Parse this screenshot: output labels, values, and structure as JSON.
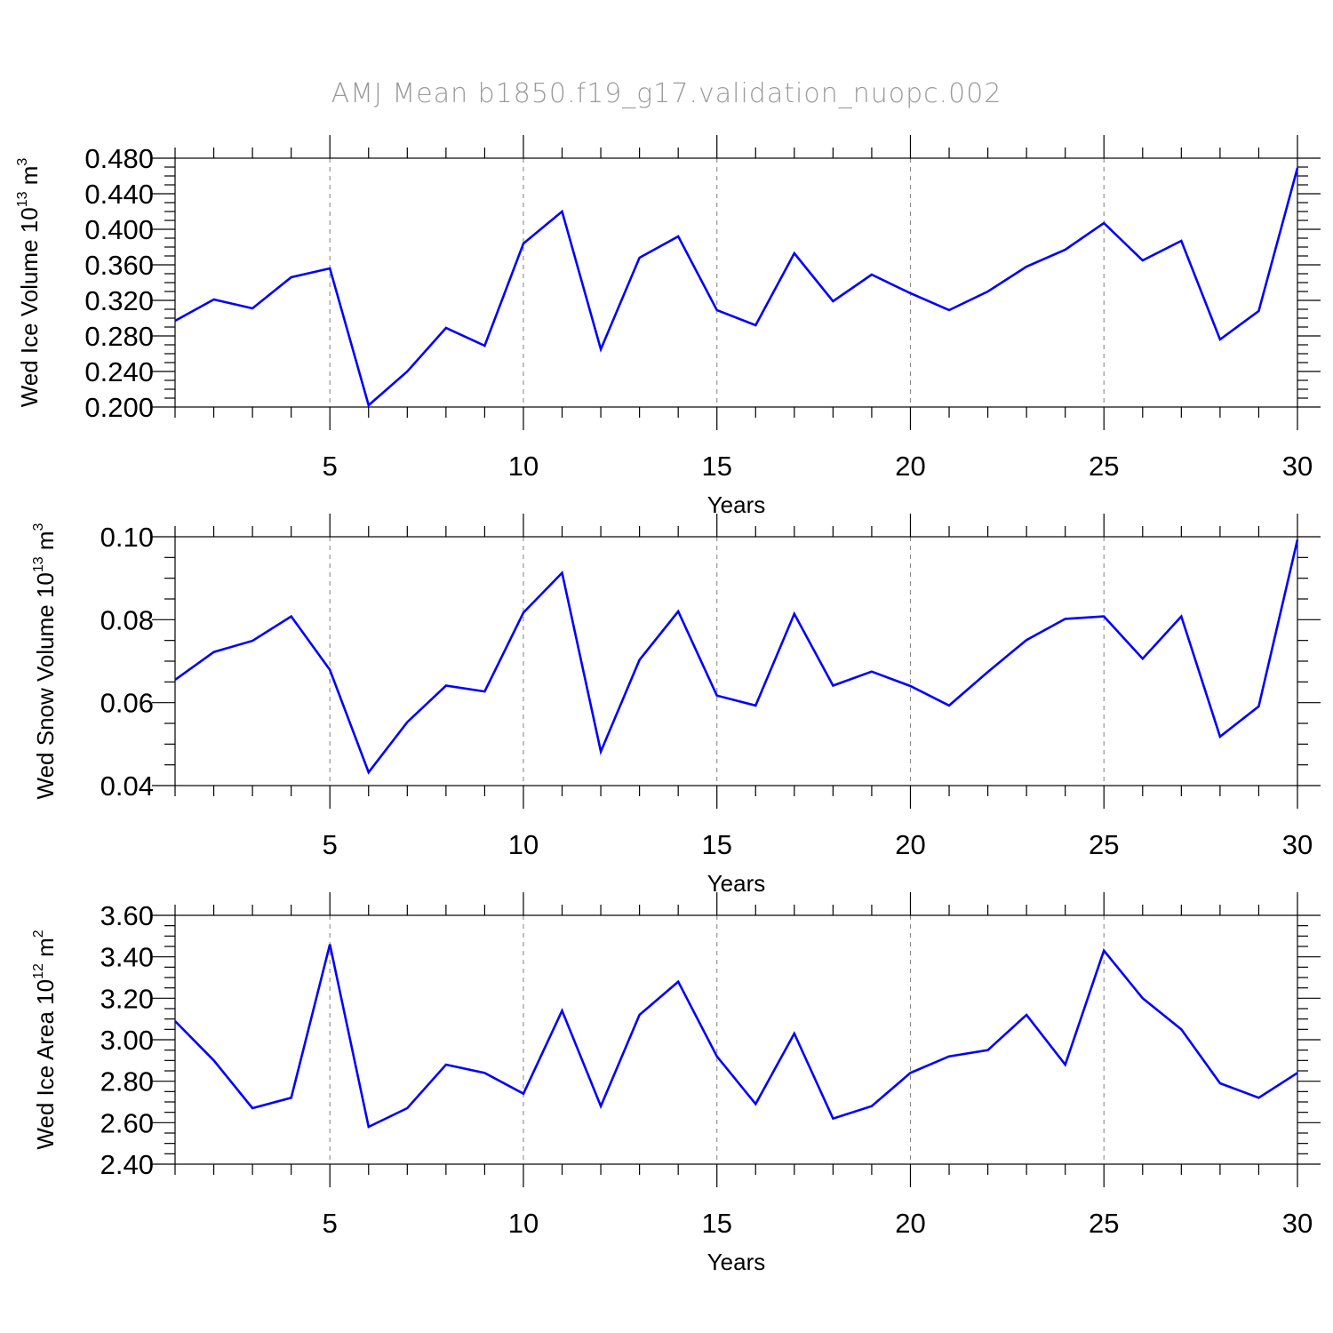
{
  "title": "AMJ Mean b1850.f19_g17.validation_nuopc.002",
  "colors": {
    "series": "#0000ff",
    "grid": "#8a8a8a",
    "title": "#9a9a9a"
  },
  "chart_data": [
    {
      "type": "line",
      "xlabel": "Years",
      "ylabel": {
        "main": "Wed Ice Volume 10",
        "sup1": "13",
        "unit": " m",
        "sup2": "3"
      },
      "xlim": [
        1,
        30
      ],
      "ylim": [
        0.2,
        0.48
      ],
      "xticks": [
        5,
        10,
        15,
        20,
        25,
        30
      ],
      "xtick_labels": [
        "5",
        "10",
        "15",
        "20",
        "25",
        "30"
      ],
      "yticks": [
        0.2,
        0.24,
        0.28,
        0.32,
        0.36,
        0.4,
        0.44,
        0.48
      ],
      "ytick_labels": [
        "0.200",
        "0.240",
        "0.280",
        "0.320",
        "0.360",
        "0.400",
        "0.440",
        "0.480"
      ],
      "y_minor_step": 0.01,
      "x": [
        1,
        2,
        3,
        4,
        5,
        6,
        7,
        8,
        9,
        10,
        11,
        12,
        13,
        14,
        15,
        16,
        17,
        18,
        19,
        20,
        21,
        22,
        23,
        24,
        25,
        26,
        27,
        28,
        29,
        30
      ],
      "values": [
        0.297,
        0.321,
        0.311,
        0.346,
        0.356,
        0.202,
        0.24,
        0.289,
        0.269,
        0.384,
        0.42,
        0.265,
        0.368,
        0.392,
        0.309,
        0.292,
        0.373,
        0.319,
        0.349,
        0.328,
        0.309,
        0.33,
        0.358,
        0.377,
        0.407,
        0.365,
        0.387,
        0.276,
        0.308,
        0.469
      ]
    },
    {
      "type": "line",
      "xlabel": "Years",
      "ylabel": {
        "main": "Wed Snow Volume 10",
        "sup1": "13",
        "unit": " m",
        "sup2": "3"
      },
      "xlim": [
        1,
        30
      ],
      "ylim": [
        0.04,
        0.1
      ],
      "xticks": [
        5,
        10,
        15,
        20,
        25,
        30
      ],
      "xtick_labels": [
        "5",
        "10",
        "15",
        "20",
        "25",
        "30"
      ],
      "yticks": [
        0.04,
        0.06,
        0.08,
        0.1
      ],
      "ytick_labels": [
        "0.04",
        "0.06",
        "0.08",
        "0.10"
      ],
      "y_minor_step": 0.005,
      "x": [
        1,
        2,
        3,
        4,
        5,
        6,
        7,
        8,
        9,
        10,
        11,
        12,
        13,
        14,
        15,
        16,
        17,
        18,
        19,
        20,
        21,
        22,
        23,
        24,
        25,
        26,
        27,
        28,
        29,
        30
      ],
      "values": [
        0.0655,
        0.0722,
        0.0749,
        0.0808,
        0.0679,
        0.0432,
        0.0553,
        0.0641,
        0.0627,
        0.0817,
        0.0913,
        0.0482,
        0.0703,
        0.082,
        0.0617,
        0.0593,
        0.0814,
        0.0641,
        0.0675,
        0.064,
        0.0593,
        0.0674,
        0.0751,
        0.0802,
        0.0808,
        0.0706,
        0.0808,
        0.0518,
        0.0591,
        0.0993
      ]
    },
    {
      "type": "line",
      "xlabel": "Years",
      "ylabel": {
        "main": "Wed Ice Area 10",
        "sup1": "12",
        "unit": " m",
        "sup2": "2"
      },
      "xlim": [
        1,
        30
      ],
      "ylim": [
        2.4,
        3.6
      ],
      "xticks": [
        5,
        10,
        15,
        20,
        25,
        30
      ],
      "xtick_labels": [
        "5",
        "10",
        "15",
        "20",
        "25",
        "30"
      ],
      "yticks": [
        2.4,
        2.6,
        2.8,
        3.0,
        3.2,
        3.4,
        3.6
      ],
      "ytick_labels": [
        "2.40",
        "2.60",
        "2.80",
        "3.00",
        "3.20",
        "3.40",
        "3.60"
      ],
      "y_minor_step": 0.05,
      "x": [
        1,
        2,
        3,
        4,
        5,
        6,
        7,
        8,
        9,
        10,
        11,
        12,
        13,
        14,
        15,
        16,
        17,
        18,
        19,
        20,
        21,
        22,
        23,
        24,
        25,
        26,
        27,
        28,
        29,
        30
      ],
      "values": [
        3.09,
        2.9,
        2.67,
        2.72,
        3.46,
        2.58,
        2.67,
        2.88,
        2.84,
        2.74,
        3.14,
        2.68,
        3.12,
        3.28,
        2.92,
        2.69,
        3.03,
        2.62,
        2.68,
        2.84,
        2.92,
        2.95,
        3.12,
        2.88,
        3.43,
        3.2,
        3.05,
        2.79,
        2.72,
        2.84
      ]
    }
  ]
}
